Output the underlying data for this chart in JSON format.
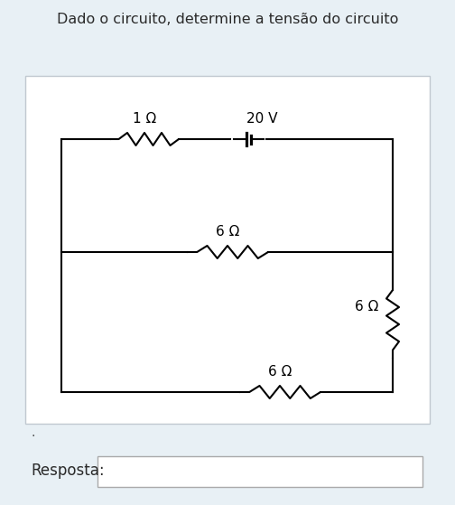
{
  "title": "Dado o circuito, determine a tensão do circuito",
  "background_color": "#e8f0f5",
  "panel_color": "#ffffff",
  "circuit_color": "#000000",
  "resposta_label": "Resposta:",
  "dot_text": ".",
  "components": {
    "resistor_top": {
      "label": "1 Ω"
    },
    "battery": {
      "label": "20 V"
    },
    "resistor_mid": {
      "label": "6 Ω"
    },
    "resistor_bot": {
      "label": "6 Ω"
    },
    "resistor_right": {
      "label": "6 Ω"
    }
  },
  "fig_width": 5.04,
  "fig_height": 5.59,
  "dpi": 100
}
